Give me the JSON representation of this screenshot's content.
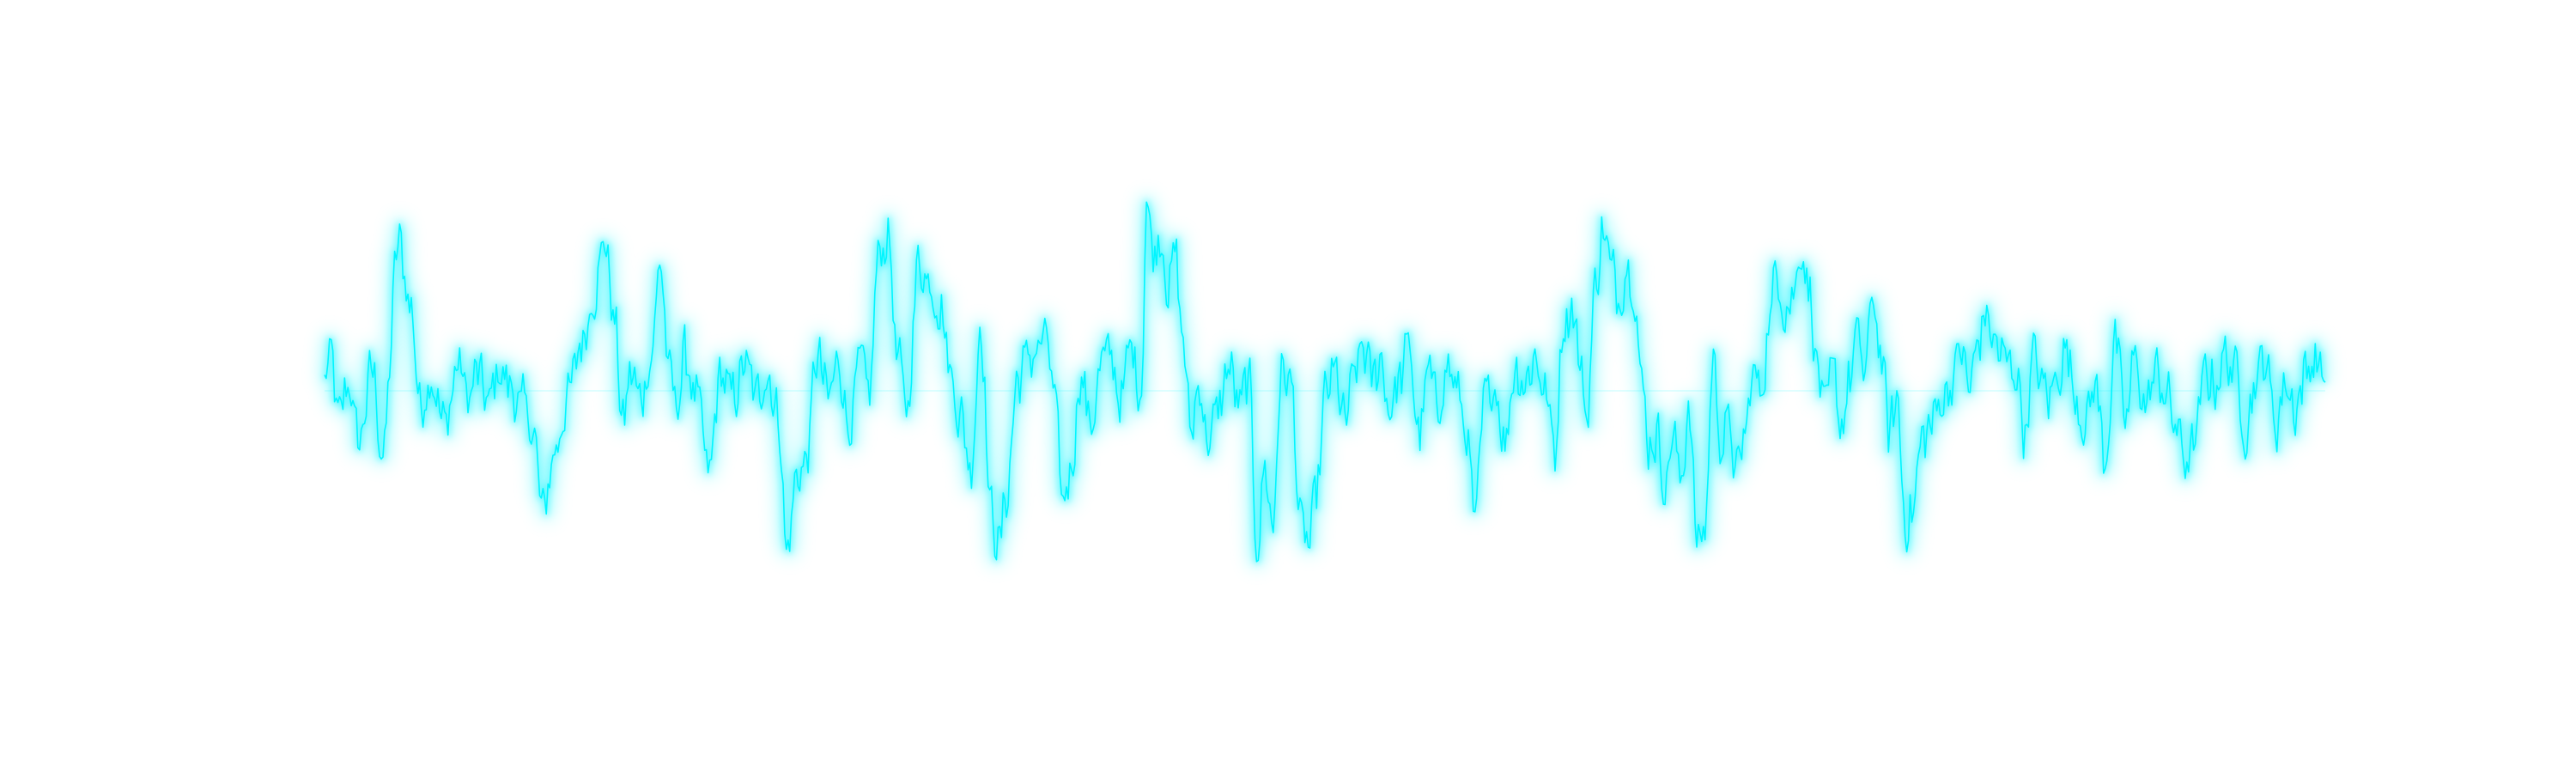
{
  "chart_data": {
    "type": "line",
    "style": "neon glow waveform",
    "title": "",
    "xlabel": "",
    "ylabel": "",
    "xlim": [
      0,
      1
    ],
    "ylim": [
      -1,
      1
    ],
    "grid": false,
    "legend": "none",
    "axes_visible": false,
    "colors": {
      "line": "#00f5ff",
      "glow": "#00f5ff",
      "background": "#ffffff"
    },
    "anchors": [
      [
        0.0,
        0.05
      ],
      [
        0.003,
        0.2
      ],
      [
        0.007,
        -0.18
      ],
      [
        0.012,
        0.05
      ],
      [
        0.017,
        -0.3
      ],
      [
        0.024,
        0.12
      ],
      [
        0.029,
        -0.38
      ],
      [
        0.037,
        0.86
      ],
      [
        0.043,
        0.5
      ],
      [
        0.048,
        -0.1
      ],
      [
        0.053,
        0.1
      ],
      [
        0.06,
        -0.2
      ],
      [
        0.067,
        0.16
      ],
      [
        0.072,
        -0.05
      ],
      [
        0.076,
        0.1
      ],
      [
        0.082,
        -0.08
      ],
      [
        0.087,
        0.12
      ],
      [
        0.093,
        0.02
      ],
      [
        0.099,
        -0.1
      ],
      [
        0.104,
        -0.2
      ],
      [
        0.109,
        -0.72
      ],
      [
        0.115,
        -0.35
      ],
      [
        0.122,
        -0.02
      ],
      [
        0.129,
        0.3
      ],
      [
        0.135,
        0.6
      ],
      [
        0.14,
        0.88
      ],
      [
        0.145,
        0.4
      ],
      [
        0.149,
        -0.2
      ],
      [
        0.153,
        0.1
      ],
      [
        0.158,
        -0.05
      ],
      [
        0.163,
        0.2
      ],
      [
        0.168,
        0.75
      ],
      [
        0.172,
        0.1
      ],
      [
        0.176,
        -0.08
      ],
      [
        0.18,
        0.2
      ],
      [
        0.186,
        -0.05
      ],
      [
        0.192,
        -0.5
      ],
      [
        0.198,
        0.1
      ],
      [
        0.204,
        -0.05
      ],
      [
        0.21,
        0.15
      ],
      [
        0.216,
        -0.05
      ],
      [
        0.221,
        0.12
      ],
      [
        0.227,
        -0.15
      ],
      [
        0.231,
        -0.95
      ],
      [
        0.236,
        -0.5
      ],
      [
        0.241,
        -0.4
      ],
      [
        0.246,
        0.2
      ],
      [
        0.252,
        -0.05
      ],
      [
        0.257,
        0.18
      ],
      [
        0.262,
        -0.2
      ],
      [
        0.268,
        0.15
      ],
      [
        0.272,
        -0.05
      ],
      [
        0.277,
        0.8
      ],
      [
        0.282,
        0.9
      ],
      [
        0.286,
        0.2
      ],
      [
        0.291,
        -0.1
      ],
      [
        0.297,
        0.75
      ],
      [
        0.302,
        0.65
      ],
      [
        0.308,
        0.5
      ],
      [
        0.313,
        0.1
      ],
      [
        0.318,
        -0.15
      ],
      [
        0.323,
        -0.45
      ],
      [
        0.328,
        0.4
      ],
      [
        0.333,
        -0.7
      ],
      [
        0.337,
        -0.9
      ],
      [
        0.341,
        -0.6
      ],
      [
        0.346,
        0.05
      ],
      [
        0.351,
        0.18
      ],
      [
        0.357,
        0.25
      ],
      [
        0.361,
        0.3
      ],
      [
        0.365,
        -0.1
      ],
      [
        0.369,
        -0.65
      ],
      [
        0.373,
        -0.45
      ],
      [
        0.378,
        0.1
      ],
      [
        0.383,
        -0.2
      ],
      [
        0.388,
        0.15
      ],
      [
        0.393,
        0.2
      ],
      [
        0.398,
        -0.05
      ],
      [
        0.403,
        0.25
      ],
      [
        0.408,
        0.0
      ],
      [
        0.411,
        1.12
      ],
      [
        0.414,
        0.8
      ],
      [
        0.418,
        0.92
      ],
      [
        0.422,
        0.6
      ],
      [
        0.425,
        0.8
      ],
      [
        0.429,
        0.3
      ],
      [
        0.433,
        -0.25
      ],
      [
        0.437,
        0.05
      ],
      [
        0.442,
        -0.3
      ],
      [
        0.447,
        -0.1
      ],
      [
        0.452,
        0.15
      ],
      [
        0.457,
        -0.1
      ],
      [
        0.462,
        0.05
      ],
      [
        0.466,
        -0.9
      ],
      [
        0.47,
        -0.45
      ],
      [
        0.474,
        -0.8
      ],
      [
        0.478,
        0.1
      ],
      [
        0.483,
        0.05
      ],
      [
        0.488,
        -0.8
      ],
      [
        0.492,
        -0.9
      ],
      [
        0.496,
        -0.6
      ],
      [
        0.5,
        -0.05
      ],
      [
        0.505,
        0.1
      ],
      [
        0.51,
        -0.2
      ],
      [
        0.514,
        0.05
      ],
      [
        0.519,
        0.25
      ],
      [
        0.524,
        0.05
      ],
      [
        0.528,
        0.2
      ],
      [
        0.532,
        -0.1
      ],
      [
        0.537,
        0.05
      ],
      [
        0.542,
        0.25
      ],
      [
        0.547,
        -0.25
      ],
      [
        0.552,
        0.1
      ],
      [
        0.556,
        -0.1
      ],
      [
        0.561,
        0.15
      ],
      [
        0.566,
        0.0
      ],
      [
        0.571,
        -0.25
      ],
      [
        0.575,
        -0.8
      ],
      [
        0.58,
        -0.05
      ],
      [
        0.585,
        0.05
      ],
      [
        0.59,
        -0.3
      ],
      [
        0.595,
        0.15
      ],
      [
        0.6,
        0.05
      ],
      [
        0.605,
        0.2
      ],
      [
        0.61,
        0.0
      ],
      [
        0.615,
        -0.35
      ],
      [
        0.619,
        0.4
      ],
      [
        0.624,
        0.5
      ],
      [
        0.628,
        0.1
      ],
      [
        0.631,
        -0.15
      ],
      [
        0.635,
        0.6
      ],
      [
        0.639,
        0.95
      ],
      [
        0.643,
        0.7
      ],
      [
        0.647,
        0.55
      ],
      [
        0.651,
        0.75
      ],
      [
        0.655,
        0.6
      ],
      [
        0.658,
        0.05
      ],
      [
        0.662,
        -0.3
      ],
      [
        0.666,
        -0.25
      ],
      [
        0.67,
        -0.55
      ],
      [
        0.674,
        -0.25
      ],
      [
        0.678,
        -0.55
      ],
      [
        0.682,
        -0.05
      ],
      [
        0.686,
        -0.9
      ],
      [
        0.69,
        -0.8
      ],
      [
        0.694,
        0.2
      ],
      [
        0.698,
        -0.3
      ],
      [
        0.702,
        -0.2
      ],
      [
        0.706,
        -0.5
      ],
      [
        0.71,
        -0.25
      ],
      [
        0.714,
        0.1
      ],
      [
        0.718,
        0.0
      ],
      [
        0.722,
        0.4
      ],
      [
        0.726,
        0.7
      ],
      [
        0.73,
        0.5
      ],
      [
        0.734,
        0.55
      ],
      [
        0.738,
        0.85
      ],
      [
        0.742,
        0.6
      ],
      [
        0.746,
        0.15
      ],
      [
        0.75,
        -0.15
      ],
      [
        0.754,
        0.1
      ],
      [
        0.758,
        -0.2
      ],
      [
        0.762,
        0.05
      ],
      [
        0.766,
        0.3
      ],
      [
        0.77,
        0.1
      ],
      [
        0.774,
        0.55
      ],
      [
        0.778,
        0.2
      ],
      [
        0.782,
        -0.25
      ],
      [
        0.786,
        -0.05
      ],
      [
        0.79,
        -0.75
      ],
      [
        0.794,
        -0.7
      ],
      [
        0.798,
        -0.3
      ],
      [
        0.803,
        -0.2
      ],
      [
        0.808,
        -0.05
      ],
      [
        0.813,
        0.05
      ],
      [
        0.818,
        0.25
      ],
      [
        0.822,
        0.0
      ],
      [
        0.826,
        0.25
      ],
      [
        0.83,
        0.45
      ],
      [
        0.834,
        0.3
      ],
      [
        0.838,
        0.2
      ],
      [
        0.842,
        0.15
      ],
      [
        0.846,
        0.1
      ],
      [
        0.85,
        -0.25
      ],
      [
        0.854,
        0.2
      ],
      [
        0.858,
        0.05
      ],
      [
        0.862,
        -0.05
      ],
      [
        0.866,
        0.1
      ],
      [
        0.87,
        0.25
      ],
      [
        0.875,
        0.0
      ],
      [
        0.88,
        -0.2
      ],
      [
        0.885,
        0.05
      ],
      [
        0.89,
        -0.4
      ],
      [
        0.895,
        0.3
      ],
      [
        0.9,
        -0.2
      ],
      [
        0.905,
        0.2
      ],
      [
        0.91,
        -0.1
      ],
      [
        0.915,
        0.1
      ],
      [
        0.92,
        0.0
      ],
      [
        0.925,
        -0.2
      ],
      [
        0.93,
        -0.4
      ],
      [
        0.935,
        -0.3
      ],
      [
        0.94,
        0.1
      ],
      [
        0.945,
        0.05
      ],
      [
        0.95,
        0.2
      ],
      [
        0.955,
        0.1
      ],
      [
        0.96,
        -0.2
      ],
      [
        0.965,
        0.05
      ],
      [
        0.97,
        0.2
      ],
      [
        0.975,
        -0.2
      ],
      [
        0.98,
        0.05
      ],
      [
        0.985,
        -0.1
      ],
      [
        0.99,
        0.1
      ],
      [
        0.995,
        0.2
      ],
      [
        1.0,
        0.05
      ]
    ]
  }
}
